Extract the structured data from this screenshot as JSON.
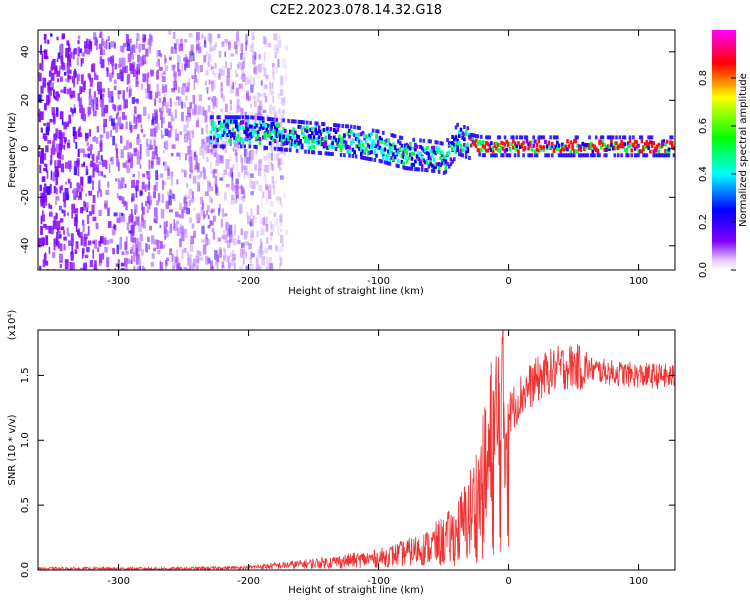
{
  "figure": {
    "title": "C2E2.2023.078.14.32.G18"
  },
  "chart_data": [
    {
      "type": "heatmap",
      "xlabel": "Height of straight line (km)",
      "ylabel": "Frequency (Hz)",
      "xlim": [
        -362,
        128
      ],
      "ylim": [
        -50,
        49
      ],
      "x_ticks": [
        -300,
        -200,
        -100,
        0,
        100
      ],
      "y_ticks": [
        -40,
        -20,
        0,
        20,
        40
      ],
      "colorbar": {
        "label": "Normalized spectral amplitude",
        "range": [
          0,
          1
        ],
        "ticks": [
          0.0,
          0.2,
          0.4,
          0.6,
          0.8
        ],
        "colormap": [
          "#ff00ff",
          "#ff0000",
          "#ffff00",
          "#00ff00",
          "#00ffff",
          "#0000ff",
          "#8000ff",
          "#ffffff"
        ]
      },
      "ridge": {
        "x": [
          -230,
          -200,
          -160,
          -120,
          -100,
          -80,
          -60,
          -50,
          -40,
          -30,
          -20,
          0,
          50,
          100,
          128
        ],
        "y": [
          7,
          7,
          5,
          3,
          1,
          -2,
          -3,
          -4,
          4,
          2,
          1,
          1,
          1,
          1,
          1
        ]
      }
    },
    {
      "type": "line",
      "xlabel": "Height of straight line (km)",
      "ylabel": "SNR (10 * v/v)",
      "y_multiplier_label": "(x10⁴)",
      "xlim": [
        -362,
        128
      ],
      "ylim": [
        0,
        1.85
      ],
      "x_ticks": [
        -300,
        -200,
        -100,
        0,
        100
      ],
      "y_ticks": [
        0.0,
        0.5,
        1.0,
        1.5
      ],
      "color": "#ee3333",
      "x": [
        -362,
        -300,
        -250,
        -200,
        -150,
        -100,
        -80,
        -60,
        -50,
        -40,
        -30,
        -20,
        -15,
        -10,
        0,
        10,
        20,
        30,
        40,
        50,
        60,
        80,
        100,
        128
      ],
      "y": [
        0.01,
        0.01,
        0.01,
        0.02,
        0.05,
        0.09,
        0.13,
        0.18,
        0.22,
        0.28,
        0.42,
        0.62,
        0.82,
        1.0,
        1.2,
        1.35,
        1.45,
        1.52,
        1.56,
        1.57,
        1.55,
        1.52,
        1.5,
        1.49
      ]
    }
  ]
}
